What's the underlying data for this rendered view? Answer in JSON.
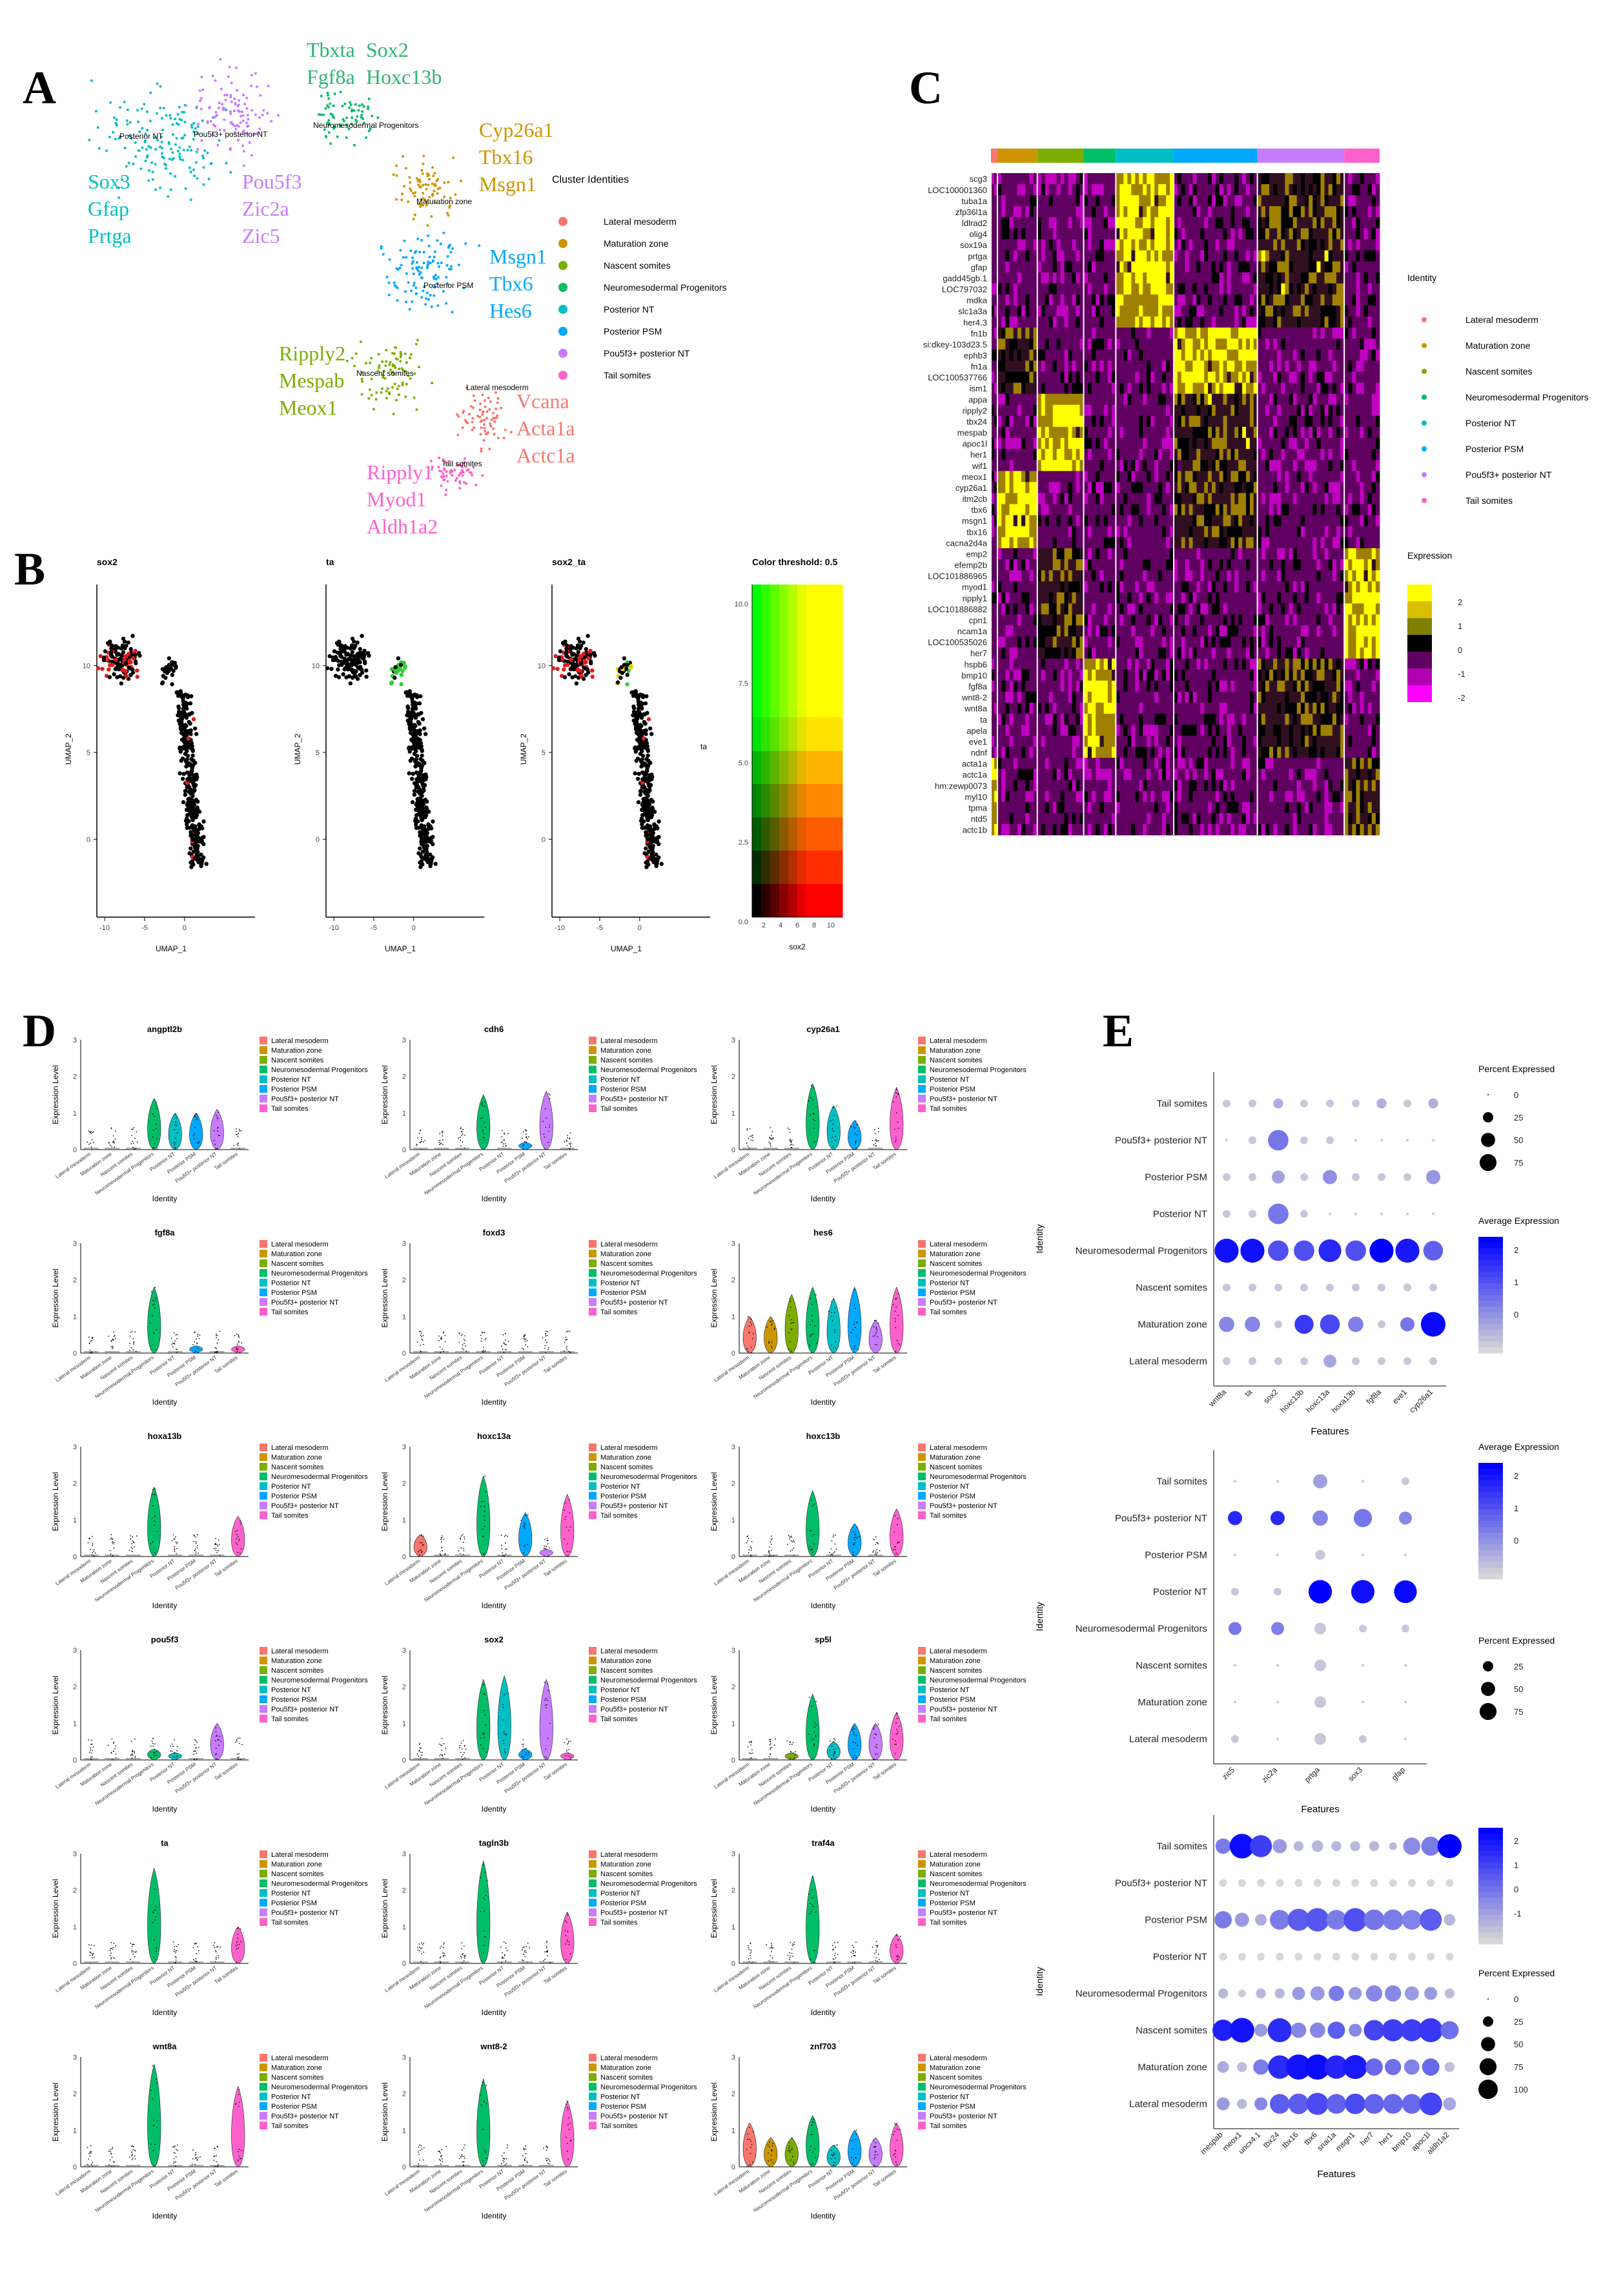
{
  "panel_letters": {
    "a": "A",
    "b": "B",
    "c": "C",
    "d": "D",
    "e": "E"
  },
  "clusters": [
    "Lateral mesoderm",
    "Maturation zone",
    "Nascent somites",
    "Neuromesodermal Progenitors",
    "Posterior NT",
    "Posterior PSM",
    "Pou5f3+ posterior NT",
    "Tail somites"
  ],
  "colors": {
    "Lateral mesoderm": "#f8766d",
    "Maturation zone": "#cd9600",
    "Nascent somites": "#7cae00",
    "Neuromesodermal Progenitors": "#00be67",
    "Posterior NT": "#00bfc4",
    "Posterior PSM": "#00a9ff",
    "Pou5f3+ posterior NT": "#c77cff",
    "Tail somites": "#ff61cc"
  },
  "panel_a": {
    "legend_title": "Cluster Identities",
    "cluster_labels": {
      "posterior_nt": "Posterior NT",
      "pou5f3": "Pou5f3+ posterior NT",
      "nmp": "Neuromesodermal Progenitors",
      "maturation": "Maturation zone",
      "psm": "Posterior PSM",
      "nascent": "Nascent somites",
      "lateral": "Lateral mesoderm",
      "tail": "Tail somites"
    },
    "marker_groups": {
      "nmp": [
        "Tbxta",
        "Sox2",
        "Fgf8a",
        "Hoxc13b"
      ],
      "posterior_nt": [
        "Sox3",
        "Gfap",
        "Prtga"
      ],
      "pou5f3": [
        "Pou5f3",
        "Zic2a",
        "Zic5"
      ],
      "maturation": [
        "Cyp26a1",
        "Tbx16",
        "Msgn1"
      ],
      "psm": [
        "Msgn1",
        "Tbx6",
        "Hes6"
      ],
      "nascent": [
        "Ripply2",
        "Mespab",
        "Meox1"
      ],
      "lateral": [
        "Vcana",
        "Acta1a",
        "Actc1a"
      ],
      "tail": [
        "Ripply1",
        "Myod1",
        "Aldh1a2"
      ]
    }
  },
  "panel_b": {
    "titles": [
      "sox2",
      "ta",
      "sox2_ta",
      "Color threshold: 0.5"
    ],
    "y_axis_label": "UMAP_2",
    "x_axis_label": "UMAP_1",
    "y_ticks": [
      "10",
      "5",
      "0"
    ],
    "x_ticks": [
      "-10",
      "-5",
      "0"
    ],
    "blend_y_ticks": [
      "10.0",
      "7.5",
      "5.0",
      "2.5",
      "0.0"
    ],
    "blend_x_ticks": [
      "2",
      "4",
      "6",
      "8",
      "10"
    ],
    "blend_y_label": "ta",
    "blend_x_label": "sox2"
  },
  "panel_c": {
    "genes": [
      "scg3",
      "LOC100001360",
      "tuba1a",
      "zfp36l1a",
      "ldlrad2",
      "olig4",
      "sox19a",
      "prtga",
      "gfap",
      "gadd45gb.1",
      "LOC797032",
      "mdka",
      "slc1a3a",
      "her4.3",
      "fn1b",
      "si:dkey-103d23.5",
      "ephb3",
      "fn1a",
      "LOC100537766",
      "ism1",
      "appa",
      "ripply2",
      "tbx24",
      "mespab",
      "apoc1l",
      "her1",
      "wif1",
      "meox1",
      "cyp26a1",
      "itm2cb",
      "tbx6",
      "msgn1",
      "tbx16",
      "cacna2d4a",
      "emp2",
      "efemp2b",
      "LOC101886965",
      "myod1",
      "ripply1",
      "LOC101886882",
      "cpn1",
      "ncam1a",
      "LOC100535026",
      "her7",
      "hspb6",
      "bmp10",
      "fgf8a",
      "wnt8-2",
      "wnt8a",
      "ta",
      "apela",
      "eve1",
      "ndnf",
      "acta1a",
      "actc1a",
      "hm:zewp0073",
      "myl10",
      "tpma",
      "ntd5",
      "actc1b"
    ],
    "identity_title": "Identity",
    "expression_title": "Expression",
    "expression_ticks": [
      "2",
      "1",
      "0",
      "-1",
      "-2"
    ]
  },
  "panel_d": {
    "genes": [
      "angptl2b",
      "cdh6",
      "cyp26a1",
      "fgf8a",
      "foxd3",
      "hes6",
      "hoxa13b",
      "hoxc13a",
      "hoxc13b",
      "pou5f3",
      "sox2",
      "sp5l",
      "ta",
      "tagln3b",
      "traf4a",
      "wnt8a",
      "wnt8-2",
      "znf703"
    ],
    "y_label": "Expression Level",
    "x_label": "Identity",
    "x_ticks": [
      "Lateral mesoderm",
      "Maturation zone",
      "Nascent somites",
      "Neuromesodermal Progenitors",
      "Posterior NT",
      "Posterior PSM",
      "Pou5f3+ posterior NT",
      "Tail somites"
    ]
  },
  "panel_e": {
    "identity_label": "Identity",
    "features_label": "Features",
    "rows": [
      "Tail somites",
      "Pou5f3+ posterior NT",
      "Posterior PSM",
      "Posterior NT",
      "Neuromesodermal Progenitors",
      "Nascent somites",
      "Maturation zone",
      "Lateral mesoderm"
    ],
    "plot1": {
      "features": [
        "wnt8a",
        "ta",
        "sox2",
        "hoxc13b",
        "hoxc13a",
        "hoxa13b",
        "fgf8a",
        "eve1",
        "cyp26a1"
      ],
      "percent_title": "Percent Expressed",
      "percent_ticks": [
        "0",
        "25",
        "50",
        "75"
      ],
      "avg_title": "Average Expression",
      "avg_ticks": [
        "2",
        "1",
        "0"
      ]
    },
    "plot2": {
      "features": [
        "zic5",
        "zic2a",
        "prtga",
        "sox3",
        "gfap"
      ],
      "avg_title": "Average Expression",
      "avg_ticks": [
        "2",
        "1",
        "0"
      ],
      "percent_title": "Percent Expressed",
      "percent_ticks": [
        "25",
        "50",
        "75"
      ]
    },
    "plot3": {
      "features": [
        "mespab",
        "meox1",
        "uncx4.1",
        "tbx24",
        "tbx16",
        "tbx6",
        "snai1a",
        "msgn1",
        "her7",
        "her1",
        "bmp10",
        "apoc1l",
        "aldh1a2"
      ],
      "avg_ticks": [
        "2",
        "1",
        "0",
        "-1"
      ],
      "percent_title": "Percent Expressed",
      "percent_ticks": [
        "0",
        "25",
        "50",
        "75",
        "100"
      ]
    }
  },
  "chart_data": [
    {
      "type": "heatmap",
      "title": "",
      "rows": [
        "Tail somites",
        "Pou5f3+ posterior NT",
        "Posterior PSM",
        "Posterior NT",
        "Neuromesodermal Progenitors",
        "Nascent somites",
        "Maturation zone",
        "Lateral mesoderm"
      ],
      "columns": [
        "wnt8a",
        "ta",
        "sox2",
        "hoxc13b",
        "hoxc13a",
        "hoxa13b",
        "fgf8a",
        "eve1",
        "cyp26a1"
      ],
      "percent": [
        [
          5,
          5,
          10,
          5,
          5,
          5,
          10,
          5,
          10
        ],
        [
          0,
          5,
          60,
          5,
          5,
          0,
          0,
          0,
          0
        ],
        [
          5,
          5,
          20,
          5,
          25,
          5,
          5,
          5,
          25
        ],
        [
          5,
          5,
          60,
          5,
          0,
          0,
          0,
          0,
          0
        ],
        [
          85,
          85,
          60,
          60,
          75,
          60,
          85,
          85,
          55
        ],
        [
          5,
          5,
          5,
          5,
          5,
          5,
          5,
          5,
          5
        ],
        [
          30,
          30,
          5,
          50,
          55,
          30,
          5,
          25,
          90
        ],
        [
          5,
          5,
          5,
          5,
          20,
          5,
          5,
          5,
          5
        ]
      ],
      "avg": [
        [
          0,
          0,
          0.3,
          0,
          0,
          0,
          0.3,
          0,
          0.3
        ],
        [
          0,
          0,
          1,
          0,
          0,
          0,
          0,
          0,
          0
        ],
        [
          0,
          0,
          0.5,
          0,
          0.7,
          0,
          0,
          0,
          0.6
        ],
        [
          0,
          0,
          1,
          0,
          0,
          0,
          0,
          0,
          0
        ],
        [
          2.3,
          2.3,
          1.5,
          1.5,
          2,
          1.5,
          2.5,
          2.2,
          1.3
        ],
        [
          0,
          0,
          0,
          0,
          0,
          0,
          0,
          0,
          0
        ],
        [
          0.8,
          0.8,
          0,
          1.8,
          1.6,
          0.9,
          0,
          1,
          2.4
        ],
        [
          0,
          0,
          0,
          0,
          0.4,
          0,
          0,
          0,
          0
        ]
      ]
    },
    {
      "type": "heatmap",
      "title": "",
      "rows": [
        "Tail somites",
        "Pou5f3+ posterior NT",
        "Posterior PSM",
        "Posterior NT",
        "Neuromesodermal Progenitors",
        "Nascent somites",
        "Maturation zone",
        "Lateral mesoderm"
      ],
      "columns": [
        "zic5",
        "zic2a",
        "prtga",
        "sox3",
        "gfap"
      ],
      "percent": [
        [
          0,
          0,
          25,
          0,
          5
        ],
        [
          25,
          25,
          30,
          45,
          20
        ],
        [
          0,
          0,
          10,
          0,
          0
        ],
        [
          5,
          5,
          80,
          80,
          75
        ],
        [
          20,
          20,
          15,
          5,
          5
        ],
        [
          0,
          0,
          15,
          0,
          0
        ],
        [
          0,
          0,
          15,
          0,
          0
        ],
        [
          5,
          0,
          15,
          5,
          0
        ]
      ],
      "avg": [
        [
          0,
          0,
          0.5,
          0,
          0
        ],
        [
          2,
          2,
          0.8,
          1,
          0.8
        ],
        [
          0,
          0,
          0,
          0,
          0
        ],
        [
          0,
          0,
          2.5,
          2.3,
          2.4
        ],
        [
          1,
          0.9,
          0,
          0,
          0
        ],
        [
          0,
          0,
          0,
          0,
          0
        ],
        [
          0,
          0,
          0,
          0,
          0
        ],
        [
          0,
          0,
          0,
          0,
          0
        ]
      ]
    },
    {
      "type": "heatmap",
      "title": "",
      "rows": [
        "Tail somites",
        "Pou5f3+ posterior NT",
        "Posterior PSM",
        "Posterior NT",
        "Neuromesodermal Progenitors",
        "Nascent somites",
        "Maturation zone",
        "Lateral mesoderm"
      ],
      "columns": [
        "mespab",
        "meox1",
        "uncx4.1",
        "tbx24",
        "tbx16",
        "tbx6",
        "snai1a",
        "msgn1",
        "her7",
        "her1",
        "bmp10",
        "apoc1l",
        "aldh1a2"
      ],
      "percent": [
        [
          30,
          90,
          70,
          25,
          10,
          15,
          10,
          10,
          10,
          5,
          40,
          50,
          85
        ],
        [
          5,
          5,
          5,
          5,
          5,
          5,
          5,
          5,
          5,
          5,
          5,
          5,
          5
        ],
        [
          40,
          25,
          15,
          55,
          70,
          80,
          55,
          80,
          60,
          60,
          55,
          70,
          15
        ],
        [
          5,
          5,
          5,
          5,
          5,
          5,
          5,
          5,
          5,
          5,
          5,
          5,
          5
        ],
        [
          10,
          5,
          10,
          10,
          20,
          25,
          30,
          20,
          35,
          35,
          25,
          20,
          10
        ],
        [
          65,
          90,
          20,
          85,
          30,
          30,
          40,
          20,
          60,
          70,
          70,
          85,
          45
        ],
        [
          15,
          10,
          30,
          80,
          95,
          95,
          80,
          85,
          40,
          35,
          30,
          40,
          10
        ],
        [
          20,
          10,
          20,
          55,
          60,
          70,
          55,
          60,
          55,
          55,
          55,
          75,
          20
        ]
      ],
      "avg": [
        [
          0.5,
          2.3,
          1.5,
          0,
          -0.5,
          -0.5,
          -0.5,
          -0.5,
          -0.5,
          -0.5,
          0.2,
          0.5,
          2.5
        ],
        [
          -1,
          -1,
          -1,
          -1,
          -1,
          -1,
          -1,
          -1,
          -1,
          -1,
          -1,
          -1,
          -1
        ],
        [
          0.5,
          0,
          -0.3,
          0.5,
          1,
          1.1,
          0.5,
          1.2,
          0.6,
          0.5,
          0.4,
          1,
          -0.5
        ],
        [
          -1,
          -1,
          -1,
          -1,
          -1,
          -1,
          -1,
          -1,
          -1,
          -1,
          -1,
          -1,
          -1
        ],
        [
          -0.5,
          -0.8,
          -0.5,
          -0.5,
          0,
          0,
          0.5,
          0,
          0.3,
          0.3,
          0,
          0,
          -0.6
        ],
        [
          2,
          2.2,
          0,
          1.8,
          0.3,
          0.3,
          1,
          0.3,
          1.4,
          1.5,
          1.5,
          1.6,
          0.7
        ],
        [
          -0.3,
          -0.6,
          0.5,
          1.8,
          2.2,
          2.3,
          1.9,
          2.1,
          0.8,
          0.7,
          0.4,
          0.8,
          -0.6
        ],
        [
          0,
          -0.5,
          0.3,
          1,
          1,
          1.3,
          0.9,
          1.3,
          0.9,
          0.8,
          0.8,
          1.4,
          -0.2
        ]
      ]
    }
  ]
}
